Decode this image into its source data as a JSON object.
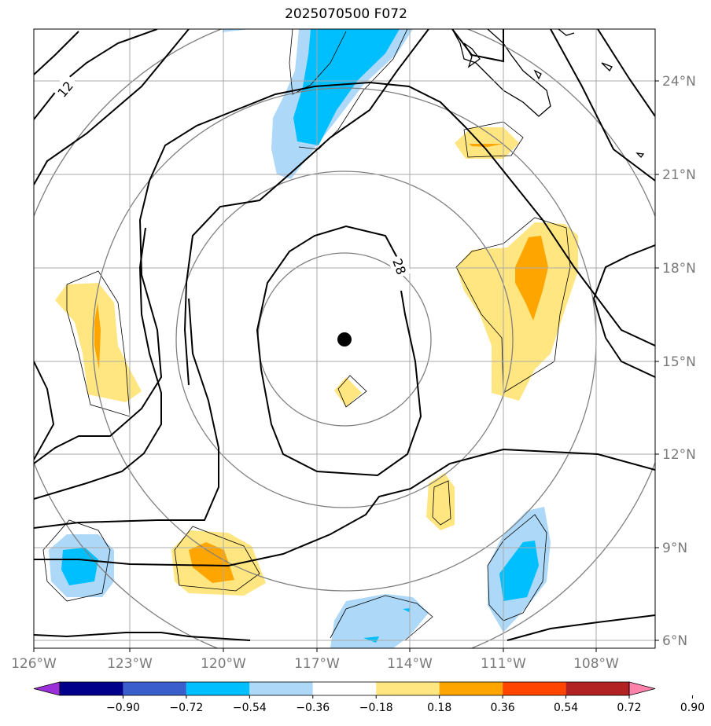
{
  "title": "2025070500 F072",
  "contour_labels": [
    "12",
    "28"
  ],
  "lat_labels": [
    "24°N",
    "21°N",
    "18°N",
    "15°N",
    "12°N",
    "9°N",
    "6°N"
  ],
  "lon_labels": [
    "126°W",
    "123°W",
    "120°W",
    "117°W",
    "114°W",
    "111°W",
    "108°W"
  ],
  "colorbar": {
    "ticks": [
      "−0.90",
      "−0.72",
      "−0.54",
      "−0.36",
      "−0.18",
      "0.18",
      "0.36",
      "0.54",
      "0.72",
      "0.90"
    ],
    "colors": [
      "#9b30d9",
      "#00008b",
      "#3a5fcd",
      "#00bfff",
      "#add8f7",
      "#ffffff",
      "#ffe680",
      "#ffa500",
      "#ff4500",
      "#b22222",
      "#ff82ab"
    ]
  },
  "fill_colors": {
    "light_blue": "#add8f7",
    "blue": "#00bfff",
    "light_yellow": "#ffe680",
    "orange": "#ffa500"
  }
}
